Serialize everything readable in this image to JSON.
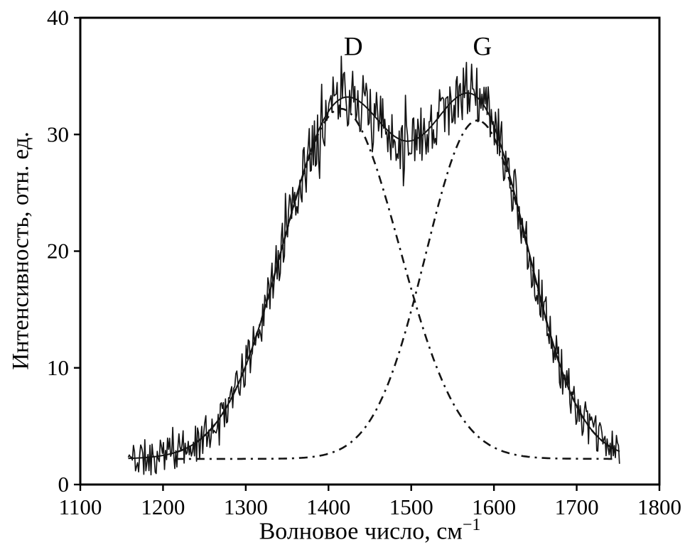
{
  "chart_data": {
    "type": "line",
    "xlabel": "Волновое число, см−1",
    "xlabel_base": "Волновое число, см",
    "xlabel_sup": "−1",
    "ylabel": "Интенсивность, отн. ед.",
    "xlim": [
      1100,
      1800
    ],
    "ylim": [
      0,
      40
    ],
    "xticks": [
      1100,
      1200,
      1300,
      1400,
      1500,
      1600,
      1700,
      1800
    ],
    "yticks": [
      0,
      10,
      20,
      30,
      40
    ],
    "grid": false,
    "legend": false,
    "line_color": "#141414",
    "annotations": [
      {
        "label": "D",
        "x": 1430,
        "y": 36.8
      },
      {
        "label": "G",
        "x": 1586,
        "y": 36.8
      }
    ],
    "baseline": 2.2,
    "peaks": [
      {
        "name": "D",
        "center": 1415,
        "amplitude": 30,
        "width": 100,
        "style": "dash-dot"
      },
      {
        "name": "G",
        "center": 1580,
        "amplitude": 29,
        "width": 88,
        "style": "dash-dot"
      }
    ],
    "fit_range": [
      1215,
      1750
    ],
    "measured": {
      "x_start": 1158,
      "x_end": 1752,
      "step": 1.25,
      "noise_min": 1.6,
      "noise_max": 2.6,
      "spike_prob": 0.05,
      "spike_scale": 1.8,
      "seed": 11
    }
  }
}
